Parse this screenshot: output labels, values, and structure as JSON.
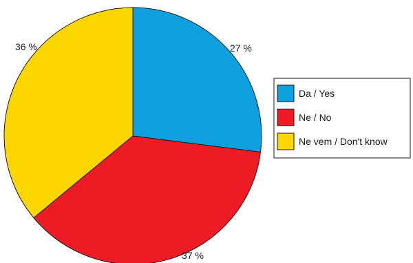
{
  "chart_data": {
    "type": "pie",
    "categories": [
      "Da / Yes",
      "Ne / No",
      "Ne vem / Don't know"
    ],
    "values": [
      27,
      37,
      36
    ],
    "value_labels": [
      "27 %",
      "37 %",
      "36 %"
    ],
    "colors": [
      "#0E9FDF",
      "#ED1C24",
      "#FFD500"
    ],
    "start_angle_deg": 0,
    "direction": "clockwise",
    "legend": {
      "placement": "right",
      "entries": [
        "Da / Yes",
        "Ne / No",
        "Ne vem / Don't know"
      ]
    },
    "title": "",
    "edge_color": "#1a1a1a"
  }
}
